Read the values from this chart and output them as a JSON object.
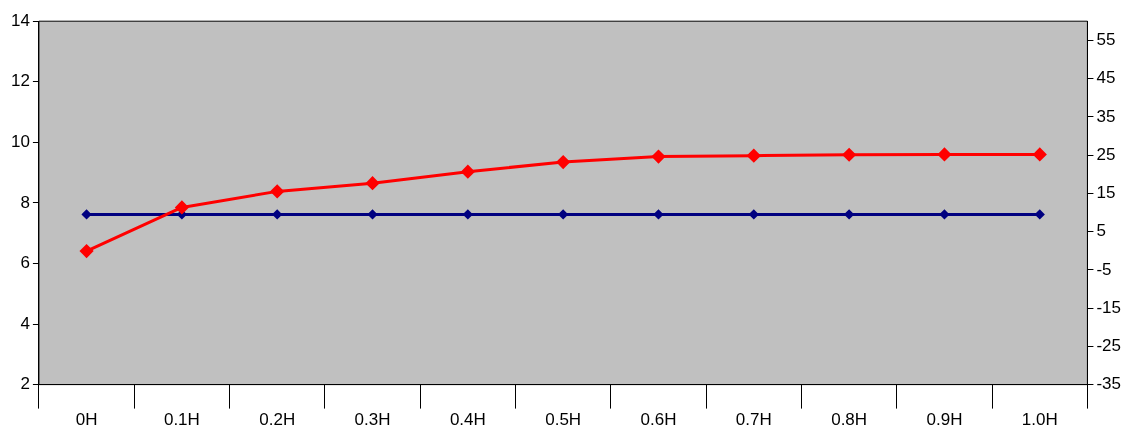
{
  "chart_data": {
    "type": "line",
    "categories": [
      "0H",
      "0.1H",
      "0.2H",
      "0.3H",
      "0.4H",
      "0.5H",
      "0.6H",
      "0.7H",
      "0.8H",
      "0.9H",
      "1.0H"
    ],
    "series": [
      {
        "color": "#ff0000",
        "values": [
          6.41,
          7.85,
          8.38,
          8.65,
          9.03,
          9.35,
          9.53,
          9.56,
          9.59,
          9.6,
          9.6
        ]
      },
      {
        "color": "#000080",
        "values": [
          7.62,
          7.62,
          7.62,
          7.62,
          7.62,
          7.62,
          7.62,
          7.62,
          7.62,
          7.62,
          7.62
        ]
      }
    ],
    "ylim": [
      2,
      14
    ],
    "yticks": [
      2,
      4,
      6,
      8,
      10,
      12,
      14
    ],
    "y2lim": [
      -35,
      60
    ],
    "y2ticks": [
      -35,
      -25,
      -15,
      -5,
      5,
      15,
      25,
      35,
      45,
      55
    ],
    "grid": false,
    "legend": false,
    "marker": "diamond",
    "line_style": "solid"
  }
}
